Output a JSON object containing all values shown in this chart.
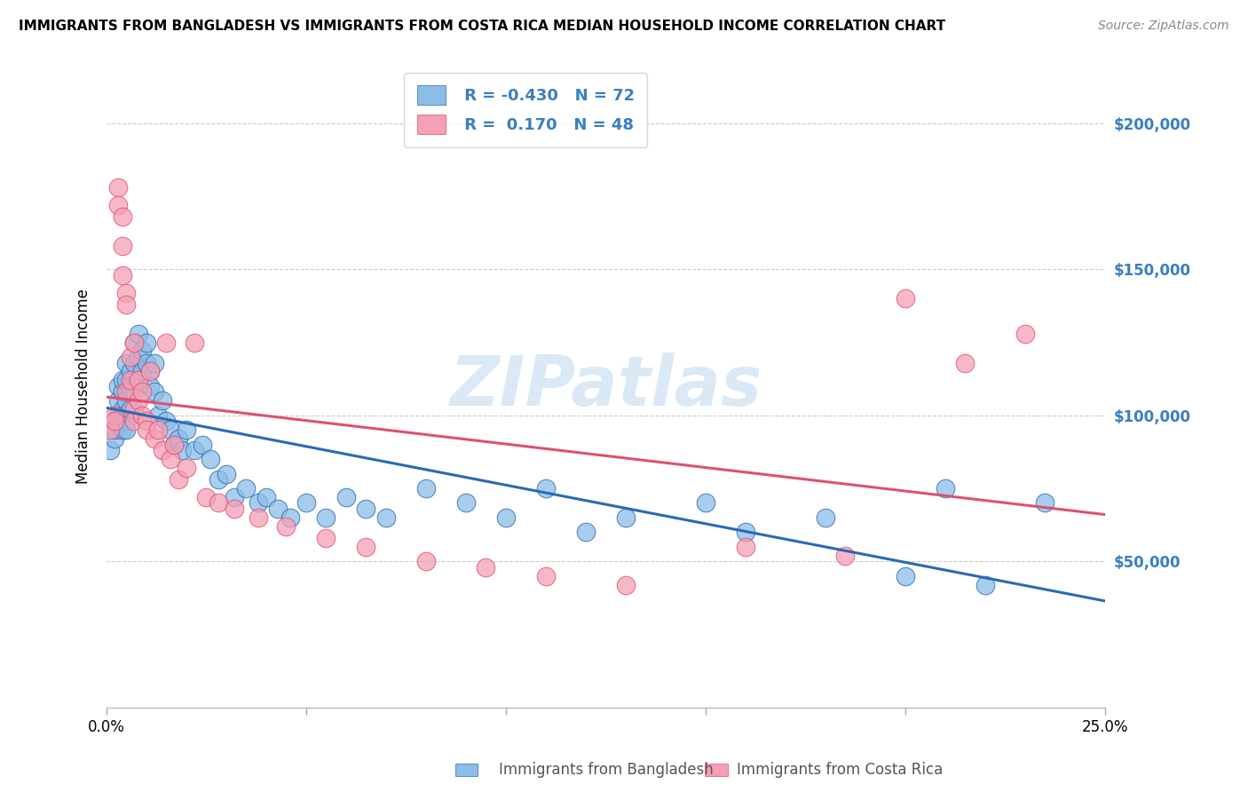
{
  "title": "IMMIGRANTS FROM BANGLADESH VS IMMIGRANTS FROM COSTA RICA MEDIAN HOUSEHOLD INCOME CORRELATION CHART",
  "source": "Source: ZipAtlas.com",
  "ylabel": "Median Household Income",
  "xlim": [
    0.0,
    0.25
  ],
  "ylim": [
    0,
    220000
  ],
  "yticks": [
    0,
    50000,
    100000,
    150000,
    200000
  ],
  "ytick_labels": [
    "",
    "$50,000",
    "$100,000",
    "$150,000",
    "$200,000"
  ],
  "watermark": "ZIPatlas",
  "legend_r1": "R = -0.430",
  "legend_n1": "N = 72",
  "legend_r2": "R =  0.170",
  "legend_n2": "N = 48",
  "color_bangladesh": "#8bbde8",
  "color_costa_rica": "#f4a0b5",
  "color_line_bangladesh": "#2b6ab5",
  "color_line_costa_rica": "#e05070",
  "color_ytick_label": "#3a7fc1",
  "background_color": "#ffffff",
  "bangladesh_x": [
    0.001,
    0.002,
    0.002,
    0.003,
    0.003,
    0.003,
    0.003,
    0.004,
    0.004,
    0.004,
    0.004,
    0.004,
    0.005,
    0.005,
    0.005,
    0.005,
    0.005,
    0.006,
    0.006,
    0.006,
    0.006,
    0.007,
    0.007,
    0.007,
    0.008,
    0.008,
    0.008,
    0.009,
    0.009,
    0.01,
    0.01,
    0.011,
    0.011,
    0.012,
    0.012,
    0.013,
    0.014,
    0.015,
    0.016,
    0.017,
    0.018,
    0.019,
    0.02,
    0.022,
    0.024,
    0.026,
    0.028,
    0.03,
    0.032,
    0.035,
    0.038,
    0.04,
    0.043,
    0.046,
    0.05,
    0.055,
    0.06,
    0.065,
    0.07,
    0.08,
    0.09,
    0.1,
    0.11,
    0.12,
    0.13,
    0.15,
    0.16,
    0.18,
    0.2,
    0.21,
    0.22,
    0.235
  ],
  "bangladesh_y": [
    88000,
    92000,
    95000,
    100000,
    98000,
    105000,
    110000,
    102000,
    108000,
    112000,
    95000,
    100000,
    118000,
    112000,
    105000,
    98000,
    95000,
    115000,
    110000,
    108000,
    102000,
    125000,
    118000,
    108000,
    128000,
    120000,
    112000,
    122000,
    115000,
    125000,
    118000,
    115000,
    110000,
    118000,
    108000,
    100000,
    105000,
    98000,
    95000,
    90000,
    92000,
    88000,
    95000,
    88000,
    90000,
    85000,
    78000,
    80000,
    72000,
    75000,
    70000,
    72000,
    68000,
    65000,
    70000,
    65000,
    72000,
    68000,
    65000,
    75000,
    70000,
    65000,
    75000,
    60000,
    65000,
    70000,
    60000,
    65000,
    45000,
    75000,
    42000,
    70000
  ],
  "costa_rica_x": [
    0.001,
    0.002,
    0.002,
    0.003,
    0.003,
    0.004,
    0.004,
    0.004,
    0.005,
    0.005,
    0.005,
    0.006,
    0.006,
    0.007,
    0.007,
    0.007,
    0.008,
    0.008,
    0.009,
    0.009,
    0.01,
    0.01,
    0.011,
    0.012,
    0.013,
    0.014,
    0.015,
    0.016,
    0.017,
    0.018,
    0.02,
    0.022,
    0.025,
    0.028,
    0.032,
    0.038,
    0.045,
    0.055,
    0.065,
    0.08,
    0.095,
    0.11,
    0.13,
    0.16,
    0.185,
    0.2,
    0.215,
    0.23
  ],
  "costa_rica_y": [
    95000,
    100000,
    98000,
    178000,
    172000,
    168000,
    158000,
    148000,
    142000,
    138000,
    108000,
    120000,
    112000,
    102000,
    125000,
    98000,
    112000,
    105000,
    108000,
    100000,
    98000,
    95000,
    115000,
    92000,
    95000,
    88000,
    125000,
    85000,
    90000,
    78000,
    82000,
    125000,
    72000,
    70000,
    68000,
    65000,
    62000,
    58000,
    55000,
    50000,
    48000,
    45000,
    42000,
    55000,
    52000,
    140000,
    118000,
    128000
  ]
}
